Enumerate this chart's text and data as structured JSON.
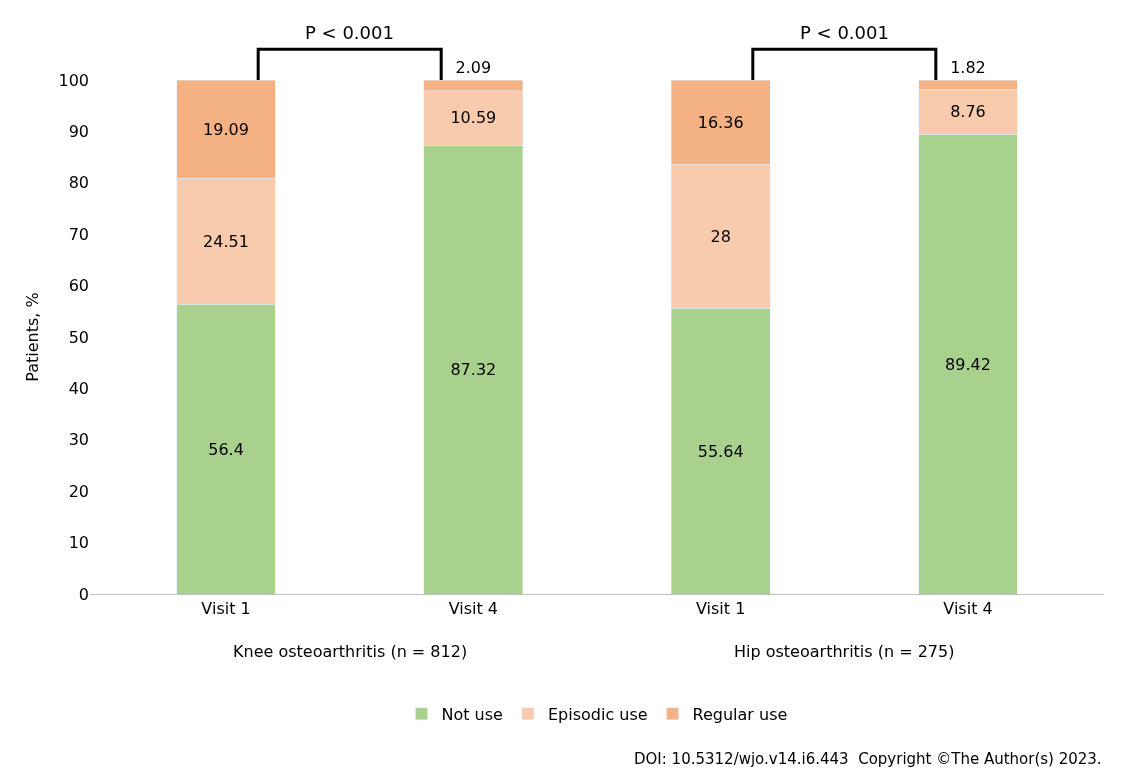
{
  "chart_data": {
    "type": "bar",
    "stacked": true,
    "ylabel": "Patients, %",
    "categories": [
      "Visit 1",
      "Visit 4",
      "Visit 1",
      "Visit 4"
    ],
    "series": [
      {
        "name": "Not use",
        "color": "#a9d18e",
        "values": [
          56.4,
          87.32,
          55.64,
          89.42
        ]
      },
      {
        "name": "Episodic use",
        "color": "#f8cbad",
        "values": [
          24.51,
          10.59,
          28,
          8.76
        ]
      },
      {
        "name": "Regular use",
        "color": "#f4b183",
        "values": [
          19.09,
          2.09,
          16.36,
          1.82
        ]
      }
    ],
    "ylim": [
      0,
      100
    ],
    "yticks": [
      0,
      10,
      20,
      30,
      40,
      50,
      60,
      70,
      80,
      90,
      100
    ],
    "grid": false,
    "legend": "bottom",
    "data_labels": true,
    "annotations": [
      "P < 0.001",
      "P < 0.001",
      "Knee osteoarthritis (n = 812)",
      "Hip osteoarthritis (n = 275)",
      "DOI: 10.5312/wjo.v14.i6.443  Copyright ©The Author(s) 2023."
    ]
  }
}
